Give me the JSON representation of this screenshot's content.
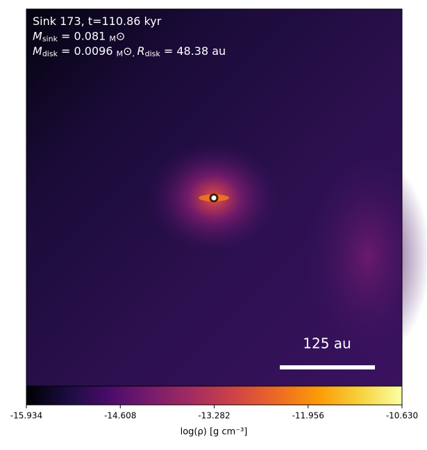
{
  "chart_data": {
    "type": "density-map",
    "annotation_lines": [
      [
        "Sink 173, t=110.86 kyr"
      ],
      [
        "M",
        "sink",
        " = 0.081 ",
        "M",
        "⊙"
      ],
      [
        "M",
        "disk",
        " = 0.0096 ",
        "M",
        "⊙",
        ", ",
        "R",
        "disk",
        " = 48.38 au"
      ]
    ],
    "scale_bar_label": "125 au",
    "colorbar_label": "log(ρ) [g cm⁻³]",
    "clim": [
      -15.934,
      -10.63
    ],
    "cticks": [
      -15.934,
      -14.608,
      -13.282,
      -11.956,
      {
        "value": -10.63,
        "label": "-10.630"
      }
    ],
    "colormap": [
      "#000004",
      "#1b0c41",
      "#4a0c6b",
      "#781c6d",
      "#a52c60",
      "#cf4446",
      "#ed6925",
      "#fb9b06",
      "#f7d13d",
      "#fcffa4"
    ]
  }
}
